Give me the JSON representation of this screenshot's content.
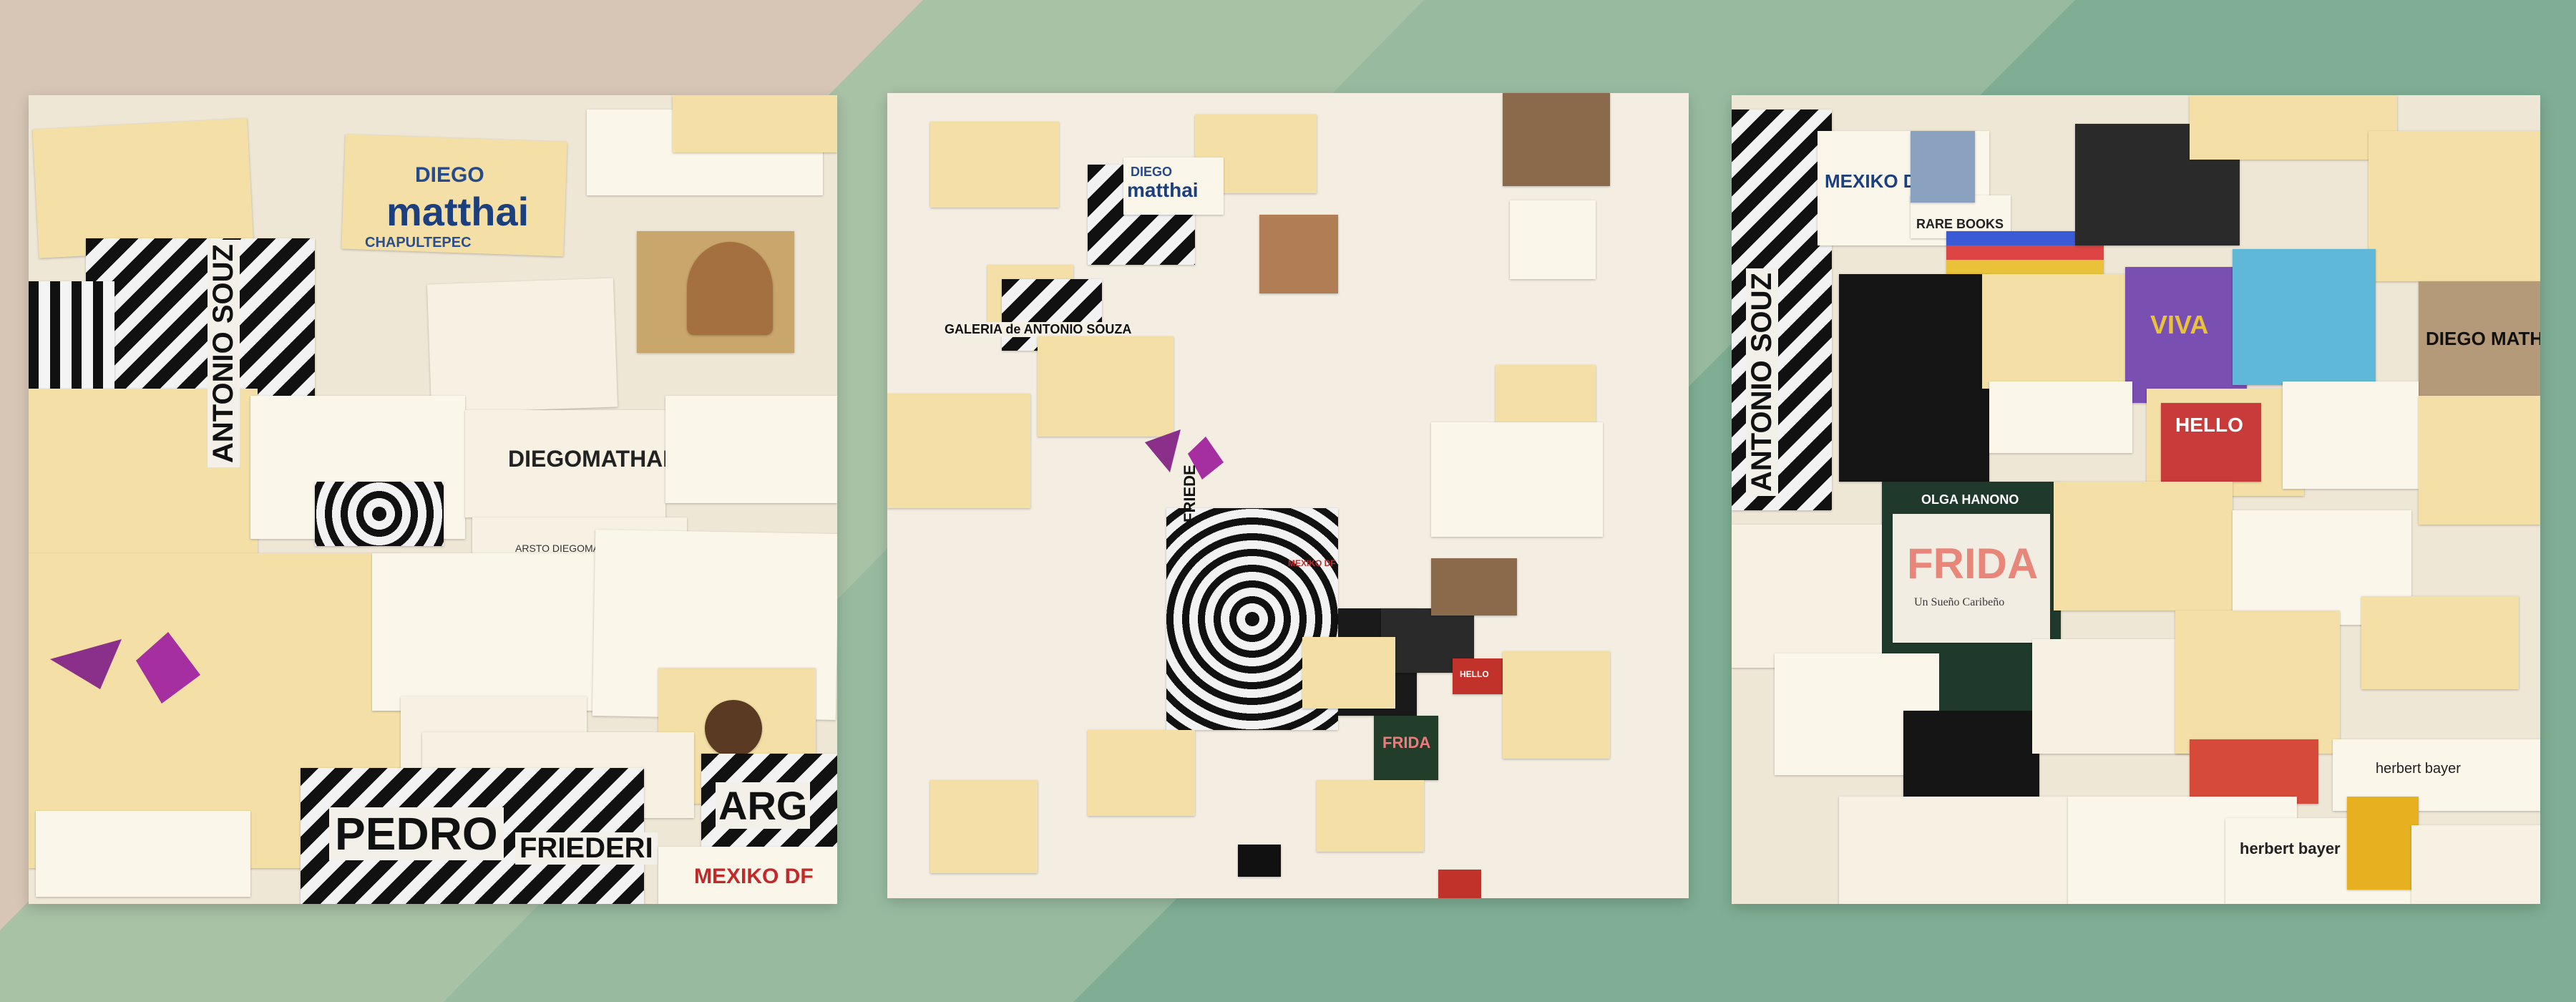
{
  "background": {
    "colors": [
      "#d8c7b8",
      "#a9c2a8",
      "#7fae96"
    ]
  },
  "panels": [
    {
      "name": "left",
      "texts": {
        "diego": "DIEGO",
        "matthai": "matthai",
        "chapultepec": "CHAPULTEPEC",
        "pedro": "PEDRO",
        "friederi": "FRIEDERI",
        "antonio": "ANTONIO SOUZ",
        "mexiko": "MEXIKO DF",
        "arg": "ARG",
        "diegomati": "DIEGOMATHAI",
        "arsto": "ARSTO DIEGOMATHAI"
      }
    },
    {
      "name": "center",
      "texts": {
        "diego": "DIEGO",
        "matthai": "matthai",
        "galeria": "GALERIA de ANTONIO SOUZA",
        "friede": "FRIEDE",
        "mexiko": "MEXIKO DF",
        "frida": "FRIDA",
        "hello": "HELLO"
      }
    },
    {
      "name": "right",
      "texts": {
        "mexiko": "MEXIKO DF",
        "rare": "RARE BOOKS",
        "viva": "VIVA",
        "hello": "HELLO",
        "olga": "OLGA HANONO",
        "frida": "FRIDA",
        "sueno": "Un Sueño Caribeño",
        "diego": "DIEGO MATH",
        "herbert1": "herbert bayer",
        "herbert2": "herbert bayer",
        "antonio": "ANTONIO SOUZ"
      }
    }
  ]
}
